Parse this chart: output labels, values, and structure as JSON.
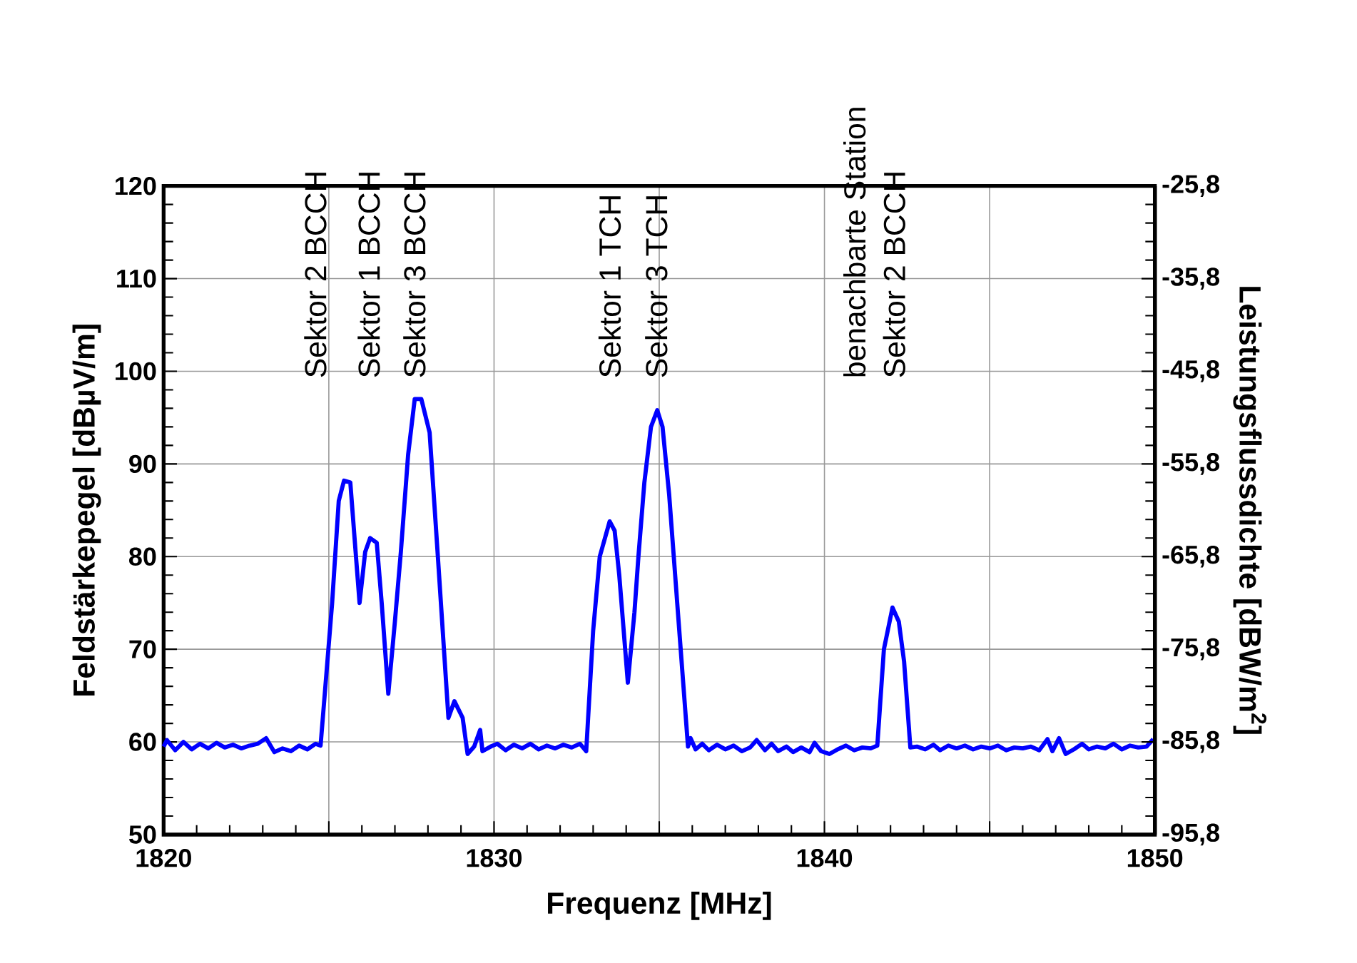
{
  "chart_data": {
    "type": "line",
    "xlabel": "Frequenz  [MHz]",
    "ylabel": "Feldstärkepegel  [dBµV/m]",
    "y2label": "Leistungsflussdichte [dBW/m$^{2}$]",
    "xlim": [
      1820,
      1850
    ],
    "xticks": [
      1820,
      {
        "value": 1825,
        "label": null
      },
      1830,
      {
        "value": 1835,
        "label": null
      },
      1840,
      {
        "value": 1845,
        "label": null
      },
      1850
    ],
    "ylim": [
      50,
      120
    ],
    "yticks": [
      50,
      60,
      70,
      80,
      90,
      100,
      110,
      120
    ],
    "y2lim": [
      -95.8,
      -25.8
    ],
    "y2ticks": [
      {
        "value": -95.8,
        "label": "-95,8"
      },
      {
        "value": -85.8,
        "label": "-85,8"
      },
      {
        "value": -75.8,
        "label": "-75,8"
      },
      {
        "value": -65.8,
        "label": "-65,8"
      },
      {
        "value": -55.8,
        "label": "-55,8"
      },
      {
        "value": -45.8,
        "label": "-45,8"
      },
      {
        "value": -35.8,
        "label": "-35,8"
      },
      {
        "value": -25.8,
        "label": "-25,8"
      }
    ],
    "grid": true,
    "annotations": [
      "Sektor 2 BCCH",
      "Sektor 1 BCCH",
      "Sektor 3 BCCH",
      "Sektor 1 TCH",
      "Sektor 3 TCH",
      "benachbarte Station",
      "Sektor 2 BCCH"
    ],
    "series": [
      {
        "color": "#0000ff",
        "x": [
          1820,
          1820.1,
          1820.35,
          1820.6,
          1820.85,
          1821.1,
          1821.35,
          1821.6,
          1821.85,
          1822.1,
          1822.35,
          1822.6,
          1822.85,
          1823.1,
          1823.35,
          1823.6,
          1823.85,
          1824.1,
          1824.35,
          1824.6,
          1824.75,
          1825.1,
          1825.3,
          1825.46,
          1825.65,
          1825.8,
          1825.93,
          1826.1,
          1826.25,
          1826.45,
          1826.6,
          1826.8,
          1827.0,
          1827.18,
          1827.4,
          1827.6,
          1827.8,
          1828.05,
          1828.3,
          1828.62,
          1828.8,
          1829.05,
          1829.2,
          1829.4,
          1829.58,
          1829.65,
          1829.9,
          1830.1,
          1830.35,
          1830.6,
          1830.85,
          1831.1,
          1831.35,
          1831.6,
          1831.85,
          1832.1,
          1832.35,
          1832.6,
          1832.79,
          1833.0,
          1833.2,
          1833.5,
          1833.65,
          1833.79,
          1834.05,
          1834.25,
          1834.37,
          1834.55,
          1834.75,
          1834.94,
          1835.1,
          1835.3,
          1835.59,
          1835.87,
          1835.95,
          1836.1,
          1836.3,
          1836.5,
          1836.75,
          1837.0,
          1837.25,
          1837.5,
          1837.75,
          1837.95,
          1838.2,
          1838.4,
          1838.6,
          1838.85,
          1839.05,
          1839.3,
          1839.55,
          1839.7,
          1839.9,
          1840.15,
          1840.4,
          1840.65,
          1840.9,
          1841.15,
          1841.4,
          1841.6,
          1841.8,
          1842.06,
          1842.25,
          1842.41,
          1842.6,
          1842.8,
          1843.05,
          1843.3,
          1843.5,
          1843.75,
          1844.0,
          1844.25,
          1844.5,
          1844.75,
          1845.0,
          1845.25,
          1845.5,
          1845.75,
          1846.0,
          1846.25,
          1846.5,
          1846.75,
          1846.9,
          1847.1,
          1847.3,
          1847.55,
          1847.8,
          1848.0,
          1848.25,
          1848.5,
          1848.75,
          1849.0,
          1849.25,
          1849.5,
          1849.75,
          1849.95
        ],
        "values": [
          59.5,
          60.2,
          59.1,
          60.0,
          59.2,
          59.8,
          59.3,
          59.9,
          59.4,
          59.7,
          59.3,
          59.6,
          59.8,
          60.4,
          58.9,
          59.3,
          59.0,
          59.6,
          59.2,
          59.8,
          59.6,
          75,
          86,
          88.2,
          88.0,
          81,
          75.0,
          80.5,
          82.0,
          81.5,
          75,
          65.2,
          73,
          80.5,
          91,
          97.0,
          97.0,
          93.4,
          80,
          62.6,
          64.4,
          62.6,
          58.7,
          59.5,
          61.3,
          59.0,
          59.5,
          59.8,
          59.1,
          59.7,
          59.3,
          59.8,
          59.2,
          59.6,
          59.3,
          59.7,
          59.4,
          59.8,
          59.0,
          72,
          80,
          83.8,
          82.8,
          78.0,
          66.4,
          74,
          80,
          88,
          94,
          95.8,
          94,
          86.7,
          72.8,
          59.5,
          60.4,
          59.2,
          59.8,
          59.1,
          59.7,
          59.2,
          59.6,
          59.0,
          59.4,
          60.2,
          59.1,
          59.8,
          59.0,
          59.5,
          58.9,
          59.4,
          58.9,
          59.9,
          59.0,
          58.7,
          59.2,
          59.6,
          59.1,
          59.4,
          59.3,
          59.6,
          70,
          74.5,
          73,
          68.7,
          59.4,
          59.5,
          59.2,
          59.7,
          59.1,
          59.6,
          59.3,
          59.6,
          59.2,
          59.5,
          59.3,
          59.6,
          59.1,
          59.4,
          59.3,
          59.5,
          59.1,
          60.3,
          59.0,
          60.4,
          58.7,
          59.2,
          59.8,
          59.2,
          59.5,
          59.3,
          59.8,
          59.2,
          59.6,
          59.4,
          59.5,
          60.3
        ]
      }
    ]
  }
}
